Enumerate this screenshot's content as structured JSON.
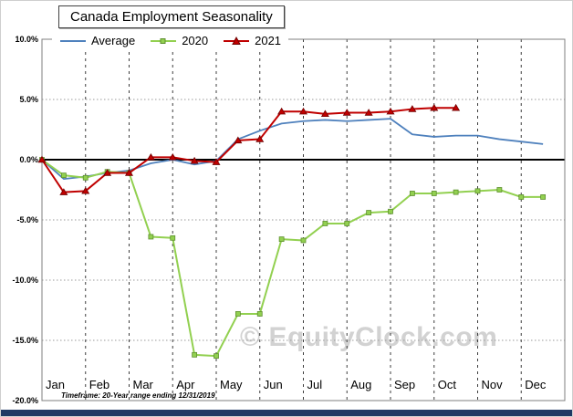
{
  "title": "Canada Employment Seasonality",
  "watermark": "© EquityClock.com",
  "footnote": "Timeframe: 20-Year range ending 12/31/2019",
  "colors": {
    "average_line": "#4f81bd",
    "year2020_line": "#92d050",
    "year2021_line": "#c00000",
    "zero_line": "#000000",
    "watermark": "#d2d2d2",
    "bottom_bar": "#1f3864"
  },
  "chart_data": {
    "type": "line",
    "title": "Canada Employment Seasonality",
    "xlabel": "",
    "ylabel": "",
    "ylim": [
      -20,
      10
    ],
    "grid": true,
    "legend_position": "top-left",
    "months": [
      "Jan",
      "Feb",
      "Mar",
      "Apr",
      "May",
      "Jun",
      "Jul",
      "Aug",
      "Sep",
      "Oct",
      "Nov",
      "Dec"
    ],
    "x_step_months": 0.5,
    "yticks": [
      {
        "v": 10,
        "label": "10.0%"
      },
      {
        "v": 5,
        "label": "5.0%"
      },
      {
        "v": 0,
        "label": "0.0%"
      },
      {
        "v": -5,
        "label": "-5.0%"
      },
      {
        "v": -10,
        "label": "-10.0%"
      },
      {
        "v": -15,
        "label": "-15.0%"
      },
      {
        "v": -20,
        "label": "-20.0%"
      }
    ],
    "series": [
      {
        "name": "Average",
        "color": "#4f81bd",
        "marker": "none",
        "line_width": 1.8,
        "values": [
          0.0,
          -1.6,
          -1.4,
          -1.1,
          -0.9,
          -0.3,
          0.0,
          -0.4,
          -0.1,
          1.7,
          2.4,
          3.0,
          3.2,
          3.3,
          3.2,
          3.3,
          3.4,
          2.1,
          1.9,
          2.0,
          2.0,
          1.7,
          1.5,
          1.3
        ]
      },
      {
        "name": "2020",
        "color": "#92d050",
        "marker": "square",
        "line_width": 2,
        "values": [
          0.0,
          -1.3,
          -1.5,
          -1.0,
          -1.1,
          -6.4,
          -6.5,
          -16.2,
          -16.3,
          -12.8,
          -12.8,
          -6.6,
          -6.7,
          -5.3,
          -5.3,
          -4.4,
          -4.3,
          -2.8,
          -2.8,
          -2.7,
          -2.6,
          -2.5,
          -3.1,
          -3.1
        ]
      },
      {
        "name": "2021",
        "color": "#c00000",
        "marker": "triangle",
        "line_width": 2,
        "values": [
          0.0,
          -2.7,
          -2.6,
          -1.1,
          -1.1,
          0.2,
          0.2,
          -0.1,
          -0.2,
          1.6,
          1.7,
          4.0,
          4.0,
          3.8,
          3.9,
          3.9,
          4.0,
          4.2,
          4.3,
          4.3
        ]
      }
    ]
  }
}
